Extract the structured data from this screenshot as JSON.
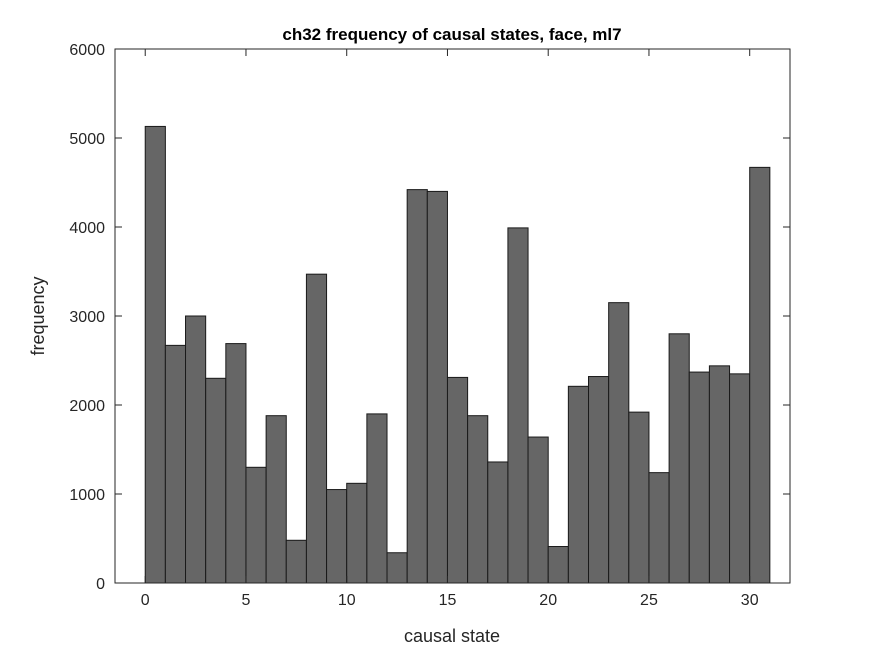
{
  "chart_data": {
    "type": "bar",
    "title": "ch32 frequency of causal states, face, ml7",
    "xlabel": "causal state",
    "ylabel": "frequency",
    "x": [
      0,
      1,
      2,
      3,
      4,
      5,
      6,
      7,
      8,
      9,
      10,
      11,
      12,
      13,
      14,
      15,
      16,
      17,
      18,
      19,
      20,
      21,
      22,
      23,
      24,
      25,
      26,
      27,
      28,
      29,
      30
    ],
    "values": [
      5130,
      2670,
      3000,
      2300,
      2690,
      1300,
      1880,
      480,
      3470,
      1050,
      1120,
      1900,
      340,
      4420,
      4400,
      2310,
      1880,
      1360,
      3990,
      1640,
      410,
      2210,
      2320,
      3150,
      1920,
      1240,
      2800,
      2370,
      2440,
      2350,
      4670
    ],
    "xlim": [
      -1.5,
      32
    ],
    "ylim": [
      0,
      6000
    ],
    "xticks": [
      0,
      5,
      10,
      15,
      20,
      25,
      30
    ],
    "yticks": [
      0,
      1000,
      2000,
      3000,
      4000,
      5000,
      6000
    ],
    "bar_color": "#666666",
    "grid": false
  }
}
